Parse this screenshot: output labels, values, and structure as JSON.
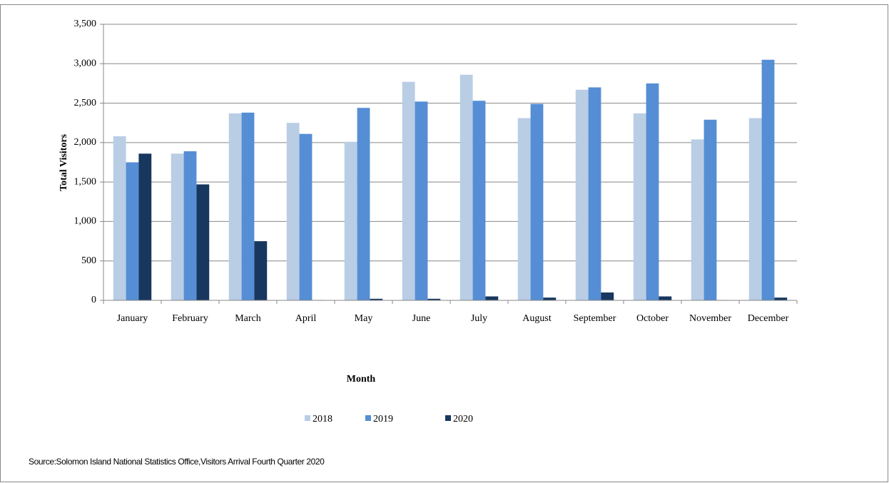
{
  "chart_data": {
    "type": "bar",
    "y_label": "Total Visitors",
    "x_label": "Month",
    "source": "Source:Solomon Island National Statistics Office,Visitors Arrival Fourth Quarter 2020",
    "categories": [
      "January",
      "February",
      "March",
      "April",
      "May",
      "June",
      "July",
      "August",
      "September",
      "October",
      "November",
      "December"
    ],
    "series": [
      {
        "name": "2018",
        "color": "#b9cde5",
        "values": [
          2080,
          1860,
          2370,
          2250,
          2010,
          2770,
          2860,
          2310,
          2670,
          2370,
          2040,
          2310
        ]
      },
      {
        "name": "2019",
        "color": "#558ed5",
        "values": [
          1750,
          1890,
          2380,
          2110,
          2440,
          2520,
          2530,
          2490,
          2700,
          2750,
          2290,
          3050
        ]
      },
      {
        "name": "2020",
        "color": "#17375e",
        "values": [
          1860,
          1470,
          750,
          5,
          20,
          20,
          50,
          35,
          100,
          50,
          5,
          35
        ]
      }
    ],
    "ylim": [
      0,
      3500
    ],
    "yticks": [
      0,
      500,
      {
        "value": 1000,
        "label": "1,000"
      },
      {
        "value": 1500,
        "label": "1,500"
      },
      {
        "value": 2000,
        "label": "2,000"
      },
      {
        "value": 2500,
        "label": "2,500"
      },
      {
        "value": 3000,
        "label": "3,000"
      },
      {
        "value": 3500,
        "label": "3,500"
      }
    ],
    "grid": true,
    "legend": "bottom"
  }
}
